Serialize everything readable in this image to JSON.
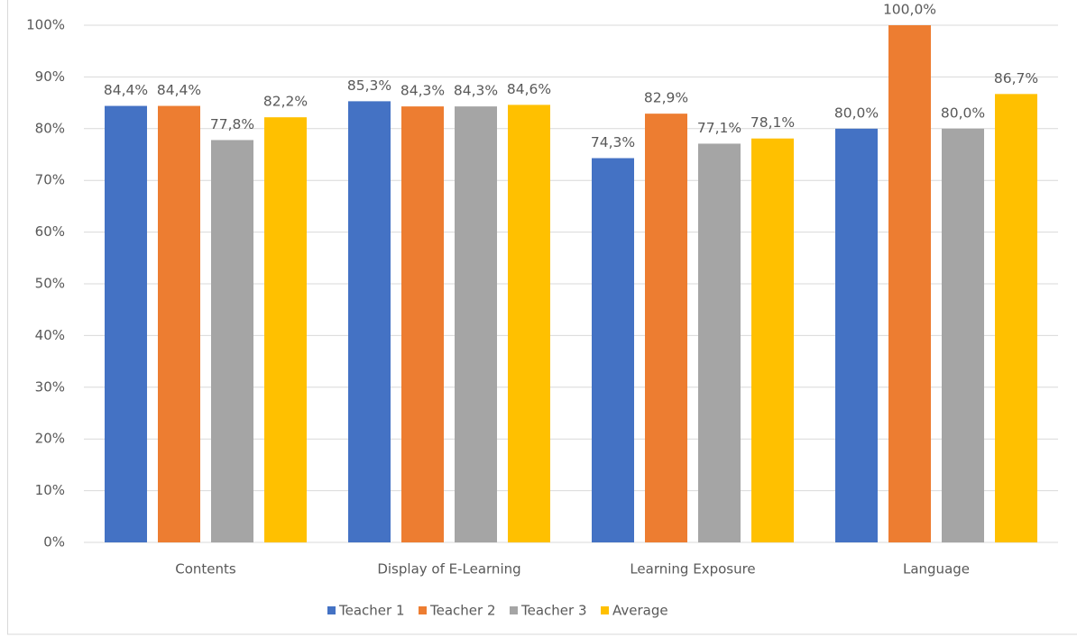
{
  "chart_data": {
    "type": "bar",
    "categories": [
      "Contents",
      "Display of E-Learning",
      "Learning Exposure",
      "Language"
    ],
    "series": [
      {
        "name": "Teacher 1",
        "color": "#4472c4",
        "values": [
          84.4,
          85.3,
          74.3,
          80.0
        ],
        "value_labels": [
          "84,4%",
          "85,3%",
          "74,3%",
          "80,0%"
        ]
      },
      {
        "name": "Teacher 2",
        "color": "#ed7d31",
        "values": [
          84.4,
          84.3,
          82.9,
          100.0
        ],
        "value_labels": [
          "84,4%",
          "84,3%",
          "82,9%",
          "100,0%"
        ]
      },
      {
        "name": "Teacher 3",
        "color": "#a5a5a5",
        "values": [
          77.8,
          84.3,
          77.1,
          80.0
        ],
        "value_labels": [
          "77,8%",
          "84,3%",
          "77,1%",
          "80,0%"
        ]
      },
      {
        "name": "Average",
        "color": "#ffc000",
        "values": [
          82.2,
          84.6,
          78.1,
          86.7
        ],
        "value_labels": [
          "82,2%",
          "84,6%",
          "78,1%",
          "86,7%"
        ]
      }
    ],
    "ylim": [
      0,
      100
    ],
    "yticks": [
      {
        "value": 0,
        "label": "0%"
      },
      {
        "value": 10,
        "label": "10%"
      },
      {
        "value": 20,
        "label": "20%"
      },
      {
        "value": 30,
        "label": "30%"
      },
      {
        "value": 40,
        "label": "40%"
      },
      {
        "value": 50,
        "label": "50%"
      },
      {
        "value": 60,
        "label": "60%"
      },
      {
        "value": 70,
        "label": "70%"
      },
      {
        "value": 80,
        "label": "80%"
      },
      {
        "value": 90,
        "label": "90%"
      },
      {
        "value": 100,
        "label": "100%"
      }
    ],
    "grid": true,
    "legend": "bottom"
  }
}
